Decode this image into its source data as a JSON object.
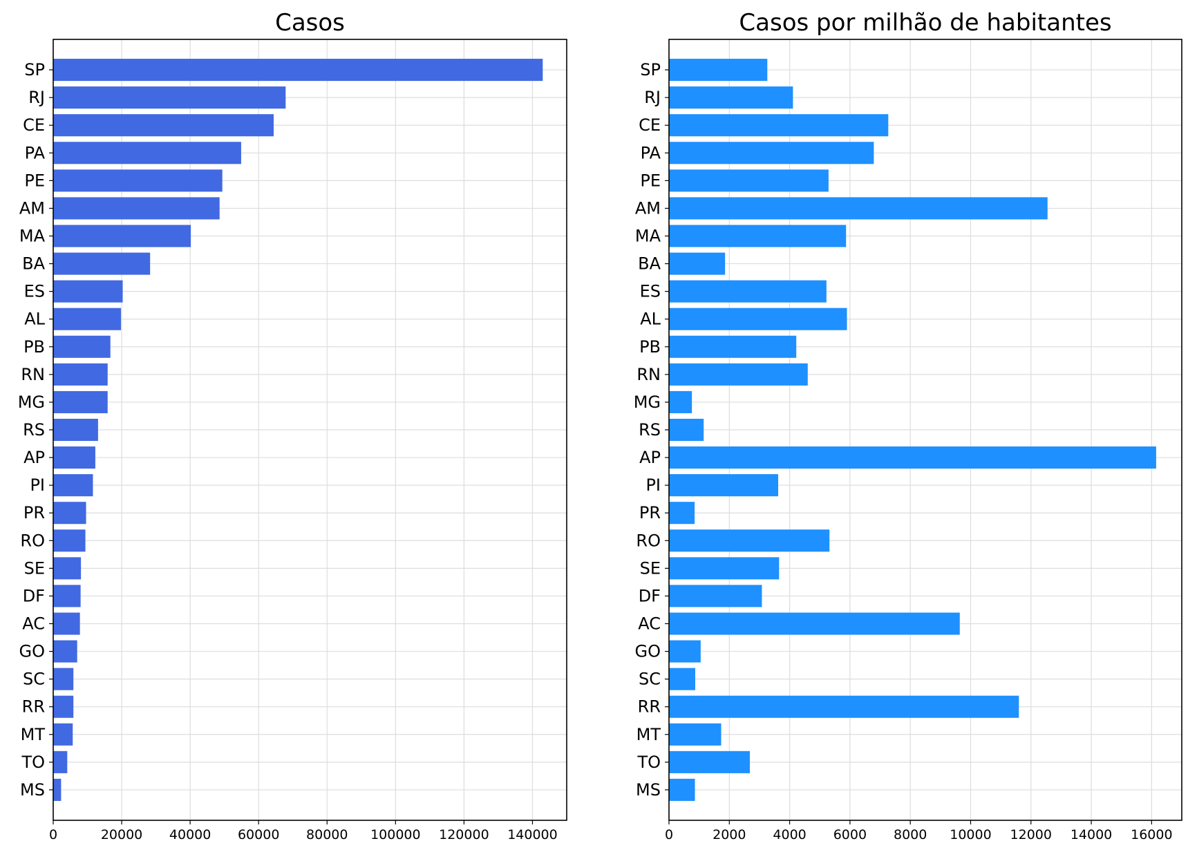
{
  "chart_data": [
    {
      "type": "bar",
      "orientation": "horizontal",
      "title": "Casos",
      "color": "#4169e1",
      "grid": true,
      "xlim": [
        0,
        150000
      ],
      "xticks": [
        0,
        20000,
        40000,
        60000,
        80000,
        100000,
        120000,
        140000
      ],
      "categories": [
        "SP",
        "RJ",
        "CE",
        "PA",
        "PE",
        "AM",
        "MA",
        "BA",
        "ES",
        "AL",
        "PB",
        "RN",
        "MG",
        "RS",
        "AP",
        "PI",
        "PR",
        "RO",
        "SE",
        "DF",
        "AC",
        "GO",
        "SC",
        "RR",
        "MT",
        "TO",
        "MS"
      ],
      "values": [
        143000,
        67900,
        64400,
        54900,
        49400,
        48600,
        40200,
        28300,
        20300,
        19800,
        16700,
        15900,
        15900,
        13100,
        12300,
        11600,
        9600,
        9400,
        8100,
        8000,
        7800,
        7000,
        5900,
        5900,
        5700,
        4100,
        2300
      ]
    },
    {
      "type": "bar",
      "orientation": "horizontal",
      "title": "Casos por milhão de habitantes",
      "color": "#1e90ff",
      "grid": true,
      "xlim": [
        0,
        17000
      ],
      "xticks": [
        0,
        2000,
        4000,
        6000,
        8000,
        10000,
        12000,
        14000,
        16000
      ],
      "categories": [
        "SP",
        "RJ",
        "CE",
        "PA",
        "PE",
        "AM",
        "MA",
        "BA",
        "ES",
        "AL",
        "PB",
        "RN",
        "MG",
        "RS",
        "AP",
        "PI",
        "PR",
        "RO",
        "SE",
        "DF",
        "AC",
        "GO",
        "SC",
        "RR",
        "MT",
        "TO",
        "MS"
      ],
      "values": [
        3260,
        4110,
        7270,
        6790,
        5290,
        12550,
        5870,
        1860,
        5220,
        5900,
        4220,
        4600,
        760,
        1150,
        16150,
        3620,
        850,
        5320,
        3650,
        3080,
        9640,
        1050,
        870,
        11600,
        1730,
        2680,
        860
      ]
    }
  ]
}
